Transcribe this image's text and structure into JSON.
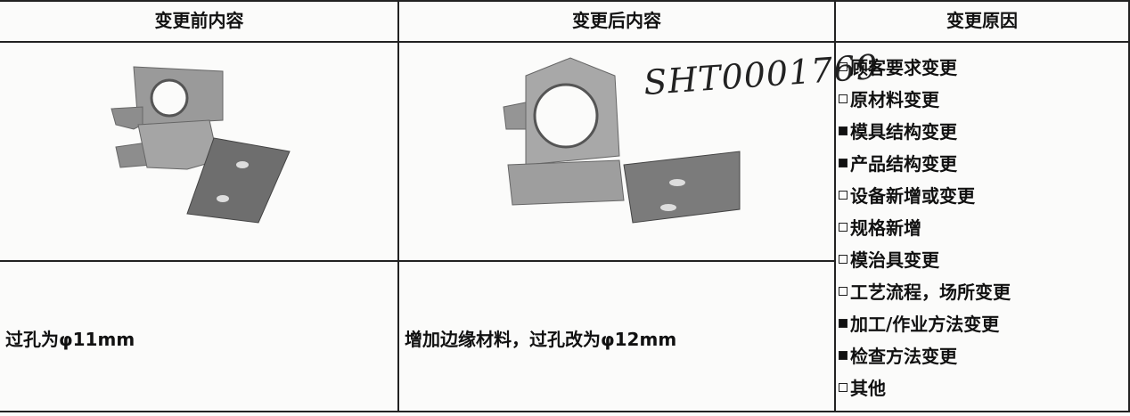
{
  "headers": [
    "变更前内容",
    "变更后内容",
    "变更原因"
  ],
  "before": {
    "description": "过孔为φ11mm"
  },
  "after": {
    "handwritten_note": "SHT0001769",
    "description": "增加边缘材料，过孔改为φ12mm"
  },
  "reasons": [
    {
      "label": "顾客要求变更",
      "checked": false
    },
    {
      "label": "原材料变更",
      "checked": false
    },
    {
      "label": "模具结构变更",
      "checked": true
    },
    {
      "label": "产品结构变更",
      "checked": true
    },
    {
      "label": "设备新增或变更",
      "checked": false
    },
    {
      "label": "规格新增",
      "checked": false
    },
    {
      "label": "模治具变更",
      "checked": false
    },
    {
      "label": "工艺流程，场所变更",
      "checked": false
    },
    {
      "label": "加工/作业方法变更",
      "checked": true
    },
    {
      "label": "检查方法变更",
      "checked": true
    },
    {
      "label": "其他",
      "checked": false
    }
  ]
}
